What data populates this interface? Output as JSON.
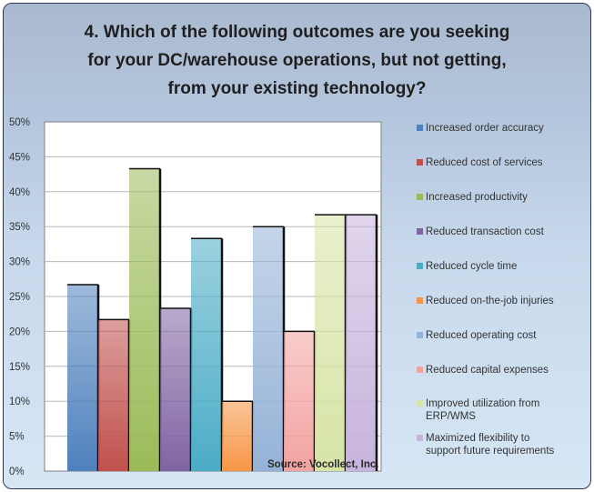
{
  "chart_data": {
    "type": "bar",
    "title": "4. Which of the following outcomes are you seeking\nfor your DC/warehouse operations, but not getting,\nfrom your existing  technology?",
    "ylim": [
      0,
      50
    ],
    "ytick_step": 5,
    "ytick_labels": [
      "0%",
      "5%",
      "10%",
      "15%",
      "20%",
      "25%",
      "30%",
      "35%",
      "40%",
      "45%",
      "50%"
    ],
    "grid": true,
    "legend_position": "right",
    "series": [
      {
        "name": "Increased order accuracy",
        "value": 26.7,
        "color": "#4f81bd"
      },
      {
        "name": "Reduced cost of services",
        "value": 21.7,
        "color": "#c0504d"
      },
      {
        "name": "Increased productivity",
        "value": 43.3,
        "color": "#9bbb59"
      },
      {
        "name": "Reduced transaction cost",
        "value": 23.3,
        "color": "#8064a2"
      },
      {
        "name": "Reduced cycle time",
        "value": 33.3,
        "color": "#4bacc6"
      },
      {
        "name": "Reduced on-the-job injuries",
        "value": 10.0,
        "color": "#f79646"
      },
      {
        "name": "Reduced operating cost",
        "value": 35.0,
        "color": "#95b3d7"
      },
      {
        "name": "Reduced capital expenses",
        "value": 20.0,
        "color": "#f2a3a1"
      },
      {
        "name": "Improved utilization from ERP/WMS",
        "value": 36.7,
        "color": "#d7e4a6"
      },
      {
        "name": "Maximized flexibility to support future requirements",
        "value": 36.7,
        "color": "#c7b4dc"
      }
    ],
    "legend_labels": [
      "Increased order accuracy",
      "Reduced cost of services",
      "Increased productivity",
      "Reduced transaction cost",
      "Reduced cycle time",
      "Reduced on-the-job injuries",
      "Reduced operating cost",
      "Reduced capital expenses",
      "Improved utilization from\nERP/WMS",
      "Maximized flexibility to\nsupport future requirements"
    ],
    "source": "Source: Vocollect, Inc."
  }
}
